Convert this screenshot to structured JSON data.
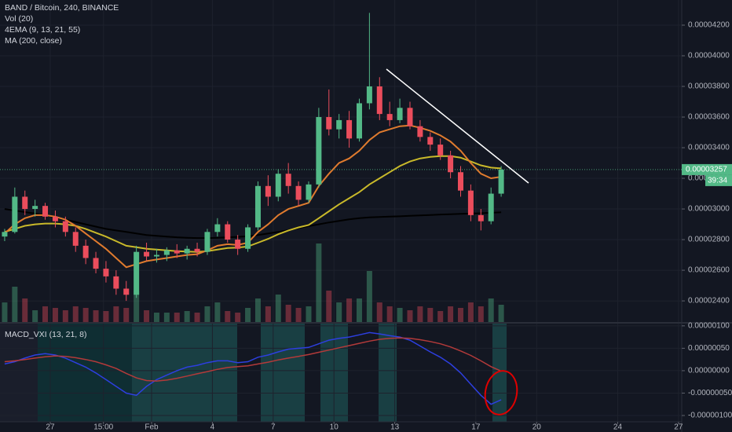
{
  "chart_data": [
    {
      "type": "candlestick",
      "title": "BAND / Bitcoin, 240, BINANCE",
      "studies": [
        "Vol (20)",
        "4EMA (9, 13, 21, 55)",
        "MA (200, close)"
      ],
      "up_color": "#53b987",
      "down_color": "#eb4d5c",
      "x": [
        24.75,
        25.25,
        25.75,
        26.25,
        26.75,
        27.25,
        27.75,
        28.25,
        28.75,
        29.25,
        29.75,
        30.25,
        30.75,
        31.25,
        31.75,
        32.25,
        32.75,
        33.25,
        33.75,
        34.25,
        34.75,
        35.25,
        35.75,
        36.25,
        36.75,
        37.25,
        37.75,
        38.25,
        38.75,
        39.25,
        39.75,
        40.25,
        40.75,
        41.25,
        41.75,
        42.25,
        42.75,
        43.25,
        43.75,
        44.25,
        44.75,
        45.25,
        45.75,
        46.25,
        46.75,
        47.25,
        47.75,
        48.25,
        48.75,
        49.25
      ],
      "open": [
        2.82e-05,
        2.85e-05,
        3.08e-05,
        3e-05,
        3.02e-05,
        2.95e-05,
        2.92e-05,
        2.85e-05,
        2.76e-05,
        2.68e-05,
        2.61e-05,
        2.56e-05,
        2.48e-05,
        2.44e-05,
        2.72e-05,
        2.69e-05,
        2.7e-05,
        2.73e-05,
        2.71e-05,
        2.74e-05,
        2.72e-05,
        2.85e-05,
        2.9e-05,
        2.8e-05,
        2.74e-05,
        2.88e-05,
        3.15e-05,
        3.08e-05,
        3.23e-05,
        3.15e-05,
        3.06e-05,
        3.16e-05,
        3.6e-05,
        3.52e-05,
        3.58e-05,
        3.46e-05,
        3.69e-05,
        3.8e-05,
        3.62e-05,
        3.58e-05,
        3.66e-05,
        3.54e-05,
        3.47e-05,
        3.42e-05,
        3.35e-05,
        3.24e-05,
        3.12e-05,
        2.96e-05,
        2.92e-05,
        3.1e-05
      ],
      "high": [
        2.87e-05,
        3.14e-05,
        3.12e-05,
        3.06e-05,
        3.04e-05,
        2.99e-05,
        2.95e-05,
        2.88e-05,
        2.8e-05,
        2.72e-05,
        2.66e-05,
        2.6e-05,
        2.53e-05,
        2.76e-05,
        2.78e-05,
        2.74e-05,
        2.75e-05,
        2.77e-05,
        2.76e-05,
        2.78e-05,
        2.87e-05,
        2.94e-05,
        2.92e-05,
        2.83e-05,
        2.9e-05,
        3.18e-05,
        3.22e-05,
        3.26e-05,
        3.3e-05,
        3.18e-05,
        3.18e-05,
        3.66e-05,
        3.78e-05,
        3.62e-05,
        3.64e-05,
        3.72e-05,
        4.28e-05,
        3.86e-05,
        3.7e-05,
        3.72e-05,
        3.7e-05,
        3.58e-05,
        3.5e-05,
        3.46e-05,
        3.38e-05,
        3.28e-05,
        3.16e-05,
        3e-05,
        3.14e-05,
        3.28e-05
      ],
      "low": [
        2.79e-05,
        2.84e-05,
        2.96e-05,
        2.95e-05,
        2.93e-05,
        2.88e-05,
        2.82e-05,
        2.72e-05,
        2.64e-05,
        2.58e-05,
        2.52e-05,
        2.44e-05,
        2.4e-05,
        2.42e-05,
        2.66e-05,
        2.65e-05,
        2.66e-05,
        2.68e-05,
        2.67e-05,
        2.69e-05,
        2.7e-05,
        2.82e-05,
        2.78e-05,
        2.7e-05,
        2.72e-05,
        2.86e-05,
        3.02e-05,
        3.05e-05,
        3.1e-05,
        3.02e-05,
        3.04e-05,
        3.14e-05,
        3.48e-05,
        3.46e-05,
        3.4e-05,
        3.44e-05,
        3.65e-05,
        3.58e-05,
        3.54e-05,
        3.56e-05,
        3.52e-05,
        3.44e-05,
        3.38e-05,
        3.32e-05,
        3.2e-05,
        3.08e-05,
        2.92e-05,
        2.86e-05,
        2.9e-05,
        3.08e-05
      ],
      "close": [
        2.85e-05,
        3.08e-05,
        3e-05,
        3.02e-05,
        2.95e-05,
        2.92e-05,
        2.85e-05,
        2.76e-05,
        2.68e-05,
        2.61e-05,
        2.56e-05,
        2.48e-05,
        2.44e-05,
        2.72e-05,
        2.69e-05,
        2.7e-05,
        2.73e-05,
        2.71e-05,
        2.74e-05,
        2.72e-05,
        2.85e-05,
        2.9e-05,
        2.8e-05,
        2.74e-05,
        2.88e-05,
        3.15e-05,
        3.08e-05,
        3.23e-05,
        3.15e-05,
        3.06e-05,
        3.16e-05,
        3.6e-05,
        3.52e-05,
        3.58e-05,
        3.46e-05,
        3.69e-05,
        3.8e-05,
        3.62e-05,
        3.58e-05,
        3.66e-05,
        3.54e-05,
        3.47e-05,
        3.42e-05,
        3.35e-05,
        3.24e-05,
        3.12e-05,
        2.96e-05,
        2.92e-05,
        3.1e-05,
        3.257e-05
      ],
      "volume": [
        25,
        45,
        30,
        15,
        20,
        18,
        15,
        20,
        18,
        15,
        14,
        20,
        18,
        40,
        15,
        12,
        12,
        12,
        14,
        12,
        20,
        25,
        14,
        12,
        18,
        30,
        20,
        35,
        22,
        18,
        20,
        100,
        40,
        25,
        30,
        30,
        65,
        25,
        20,
        18,
        15,
        20,
        18,
        14,
        20,
        18,
        25,
        20,
        30,
        22
      ],
      "overlays": [
        {
          "color": "#000000",
          "values": [
            3e-05,
            2.99e-05,
            2.98e-05,
            2.97e-05,
            2.96e-05,
            2.945e-05,
            2.93e-05,
            2.915e-05,
            2.9e-05,
            2.885e-05,
            2.87e-05,
            2.86e-05,
            2.85e-05,
            2.84e-05,
            2.83e-05,
            2.825e-05,
            2.82e-05,
            2.815e-05,
            2.812e-05,
            2.81e-05,
            2.81e-05,
            2.812e-05,
            2.815e-05,
            2.818e-05,
            2.822e-05,
            2.83e-05,
            2.84e-05,
            2.85e-05,
            2.862e-05,
            2.875e-05,
            2.888e-05,
            2.9e-05,
            2.912e-05,
            2.922e-05,
            2.932e-05,
            2.94e-05,
            2.945e-05,
            2.948e-05,
            2.95e-05,
            2.952e-05,
            2.955e-05,
            2.958e-05,
            2.961e-05,
            2.964e-05,
            2.966e-05,
            2.968e-05,
            2.97e-05,
            2.972e-05,
            2.975e-05,
            2.978e-05
          ]
        },
        {
          "color": "#c9b92a",
          "values": [
            2.85e-05,
            2.87e-05,
            2.89e-05,
            2.9e-05,
            2.905e-05,
            2.905e-05,
            2.9e-05,
            2.89e-05,
            2.87e-05,
            2.845e-05,
            2.82e-05,
            2.79e-05,
            2.76e-05,
            2.75e-05,
            2.74e-05,
            2.735e-05,
            2.73e-05,
            2.725e-05,
            2.722e-05,
            2.72e-05,
            2.725e-05,
            2.735e-05,
            2.745e-05,
            2.748e-05,
            2.755e-05,
            2.78e-05,
            2.805e-05,
            2.835e-05,
            2.86e-05,
            2.88e-05,
            2.895e-05,
            2.94e-05,
            2.985e-05,
            3.03e-05,
            3.07e-05,
            3.11e-05,
            3.16e-05,
            3.2e-05,
            3.24e-05,
            3.28e-05,
            3.31e-05,
            3.33e-05,
            3.34e-05,
            3.345e-05,
            3.345e-05,
            3.335e-05,
            3.31e-05,
            3.285e-05,
            3.27e-05,
            3.265e-05
          ]
        },
        {
          "color": "#e07b2e",
          "values": [
            2.84e-05,
            2.9e-05,
            2.94e-05,
            2.96e-05,
            2.96e-05,
            2.95e-05,
            2.93e-05,
            2.89e-05,
            2.84e-05,
            2.79e-05,
            2.74e-05,
            2.68e-05,
            2.62e-05,
            2.64e-05,
            2.66e-05,
            2.67e-05,
            2.68e-05,
            2.69e-05,
            2.7e-05,
            2.705e-05,
            2.73e-05,
            2.76e-05,
            2.77e-05,
            2.765e-05,
            2.78e-05,
            2.85e-05,
            2.9e-05,
            2.96e-05,
            3e-05,
            3.02e-05,
            3.04e-05,
            3.15e-05,
            3.23e-05,
            3.3e-05,
            3.33e-05,
            3.38e-05,
            3.45e-05,
            3.5e-05,
            3.52e-05,
            3.54e-05,
            3.545e-05,
            3.53e-05,
            3.51e-05,
            3.48e-05,
            3.44e-05,
            3.38e-05,
            3.3e-05,
            3.23e-05,
            3.2e-05,
            3.21e-05
          ]
        }
      ],
      "countdown": "39:34",
      "xlim": [
        24.52,
        58.16
      ],
      "ylim": [
        2.262e-05,
        4.364e-05
      ],
      "yticks": [
        {
          "value": 2.4e-05,
          "label": "0.00002400"
        },
        {
          "value": 2.6e-05,
          "label": "0.00002600"
        },
        {
          "value": 2.8e-05,
          "label": "0.00002800"
        },
        {
          "value": 3e-05,
          "label": "0.00003000"
        },
        {
          "value": 3.2e-05,
          "label": "0.00003200"
        },
        {
          "value": 3.4e-05,
          "label": "0.00003400"
        },
        {
          "value": 3.6e-05,
          "label": "0.00003600"
        },
        {
          "value": 3.8e-05,
          "label": "0.00003800"
        },
        {
          "value": 4e-05,
          "label": "0.00004000"
        },
        {
          "value": 4.2e-05,
          "label": "0.00004200"
        }
      ],
      "grid": true
    },
    {
      "type": "line",
      "title": "MACD_VXI (13, 21, 8)",
      "x": [
        24.75,
        25.25,
        25.75,
        26.25,
        26.75,
        27.25,
        27.75,
        28.25,
        28.75,
        29.25,
        29.75,
        30.25,
        30.75,
        31.25,
        31.75,
        32.25,
        32.75,
        33.25,
        33.75,
        34.25,
        34.75,
        35.25,
        35.75,
        36.25,
        36.75,
        37.25,
        37.75,
        38.25,
        38.75,
        39.25,
        39.75,
        40.25,
        40.75,
        41.25,
        41.75,
        42.25,
        42.75,
        43.25,
        43.75,
        44.25,
        44.75,
        45.25,
        45.75,
        46.25,
        46.75,
        47.25,
        47.75,
        48.25,
        48.75,
        49.25
      ],
      "series": [
        {
          "color": "#2d3fe0",
          "values": [
            1.5e-07,
            2e-07,
            2.8e-07,
            3.5e-07,
            3.8e-07,
            3.5e-07,
            2.8e-07,
            1.8e-07,
            8e-08,
            -5e-08,
            -2e-07,
            -3.5e-07,
            -5e-07,
            -5.5e-07,
            -3.5e-07,
            -2e-07,
            -1e-07,
            0,
            8e-08,
            1.2e-07,
            1.8e-07,
            2.2e-07,
            2.2e-07,
            1.8e-07,
            2e-07,
            3e-07,
            3.5e-07,
            4.2e-07,
            4.8e-07,
            5e-07,
            5.2e-07,
            6e-07,
            6.8e-07,
            7.2e-07,
            7.5e-07,
            8e-07,
            8.5e-07,
            8.2e-07,
            7.8e-07,
            7.5e-07,
            6.8e-07,
            5.5e-07,
            4.2e-07,
            3e-07,
            1.5e-07,
            -5e-08,
            -3e-07,
            -5.5e-07,
            -7.5e-07,
            -6.5e-07
          ]
        },
        {
          "color": "#b33a3a",
          "values": [
            2e-07,
            2.2e-07,
            2.5e-07,
            2.8e-07,
            3.1e-07,
            3.3e-07,
            3.2e-07,
            2.9e-07,
            2.5e-07,
            2e-07,
            1.3e-07,
            5e-08,
            -6e-08,
            -1.6e-07,
            -2.2e-07,
            -2.3e-07,
            -2.1e-07,
            -1.7e-07,
            -1.2e-07,
            -7e-08,
            -2e-08,
            3e-08,
            7e-08,
            9e-08,
            1.1e-07,
            1.5e-07,
            1.9e-07,
            2.4e-07,
            2.8e-07,
            3.2e-07,
            3.6e-07,
            4.1e-07,
            4.6e-07,
            5.1e-07,
            5.6e-07,
            6.1e-07,
            6.6e-07,
            7e-07,
            7.2e-07,
            7.3e-07,
            7.2e-07,
            6.9e-07,
            6.5e-07,
            6e-07,
            5.3e-07,
            4.4e-07,
            3.4e-07,
            2.2e-07,
            9e-08,
            -1e-08
          ]
        }
      ],
      "xlim": [
        24.52,
        58.16
      ],
      "ylim": [
        -1.14e-06,
        1.05e-06
      ],
      "yticks": [
        {
          "value": -1e-06,
          "label": "-0.00000100"
        },
        {
          "value": -5e-07,
          "label": "-0.00000050"
        },
        {
          "value": 0,
          "label": "0.00000000"
        },
        {
          "value": 5e-07,
          "label": "0.00000050"
        },
        {
          "value": 1e-06,
          "label": "0.00000100"
        }
      ],
      "xticks": [
        27,
        {
          "value": 29.625,
          "label": "15:00"
        },
        {
          "value": 32,
          "label": "Feb"
        },
        {
          "value": 35,
          "label": "4"
        },
        {
          "value": 38,
          "label": "7"
        },
        {
          "value": 41,
          "label": "10"
        },
        {
          "value": 44,
          "label": "13"
        },
        {
          "value": 48,
          "label": "17"
        },
        {
          "value": 51,
          "label": "20"
        },
        {
          "value": 55,
          "label": "24"
        },
        {
          "value": 58,
          "label": "27"
        }
      ],
      "grid": true
    }
  ]
}
